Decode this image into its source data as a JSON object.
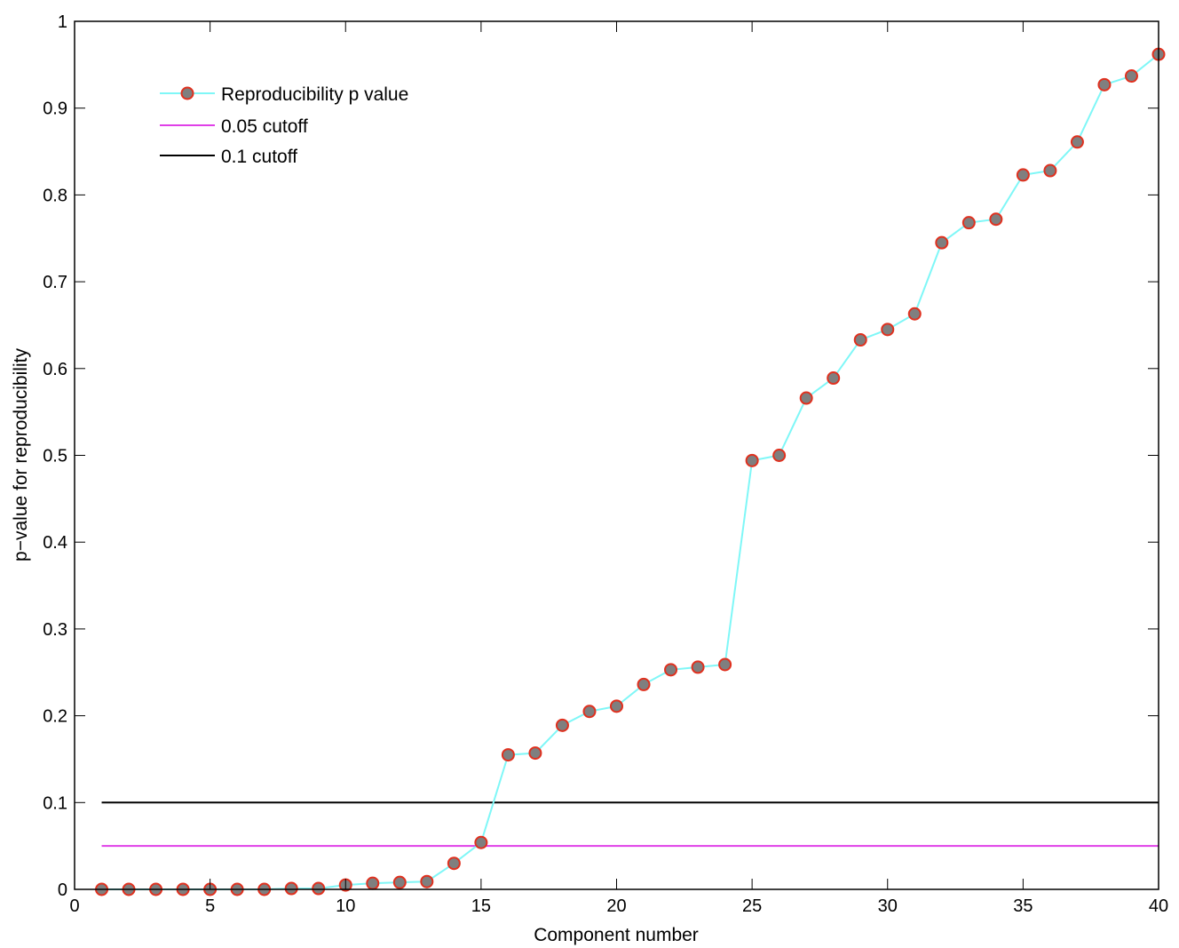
{
  "chart_data": {
    "type": "line",
    "title": "",
    "xlabel": "Component number",
    "ylabel": "p−value for reproducibility",
    "xlim": [
      0,
      40
    ],
    "ylim": [
      0,
      1
    ],
    "xticks": [
      0,
      5,
      10,
      15,
      20,
      25,
      30,
      35,
      40
    ],
    "xtick_labels": [
      "0",
      "5",
      "10",
      "15",
      "20",
      "25",
      "30",
      "35",
      "40"
    ],
    "yticks": [
      0,
      0.1,
      0.2,
      0.3,
      0.4,
      0.5,
      0.6,
      0.7,
      0.8,
      0.9,
      1
    ],
    "ytick_labels": [
      "0",
      "0.1",
      "0.2",
      "0.3",
      "0.4",
      "0.5",
      "0.6",
      "0.7",
      "0.8",
      "0.9",
      "1"
    ],
    "grid": false,
    "legend_position": "upper left",
    "x": [
      1,
      2,
      3,
      4,
      5,
      6,
      7,
      8,
      9,
      10,
      11,
      12,
      13,
      14,
      15,
      16,
      17,
      18,
      19,
      20,
      21,
      22,
      23,
      24,
      25,
      26,
      27,
      28,
      29,
      30,
      31,
      32,
      33,
      34,
      35,
      36,
      37,
      38,
      39,
      40
    ],
    "series": [
      {
        "name": "Reproducibility p value",
        "style": "line+marker",
        "line_color": "#7ff7f7",
        "marker_fill": "#7f7f7f",
        "marker_edge": "#e0301e",
        "values": [
          0.0,
          0.0,
          0.0,
          0.0,
          0.0,
          0.0,
          0.0,
          0.001,
          0.001,
          0.005,
          0.007,
          0.008,
          0.009,
          0.03,
          0.054,
          0.155,
          0.157,
          0.189,
          0.205,
          0.211,
          0.236,
          0.253,
          0.256,
          0.259,
          0.494,
          0.5,
          0.566,
          0.589,
          0.633,
          0.645,
          0.663,
          0.745,
          0.768,
          0.772,
          0.823,
          0.828,
          0.861,
          0.927,
          0.937,
          0.962
        ]
      },
      {
        "name": "0.05 cutoff",
        "style": "line",
        "line_color": "#e040e8",
        "x_range": [
          1,
          40
        ],
        "value": 0.05
      },
      {
        "name": "0.1 cutoff",
        "style": "line",
        "line_color": "#000000",
        "x_range": [
          1,
          40
        ],
        "value": 0.1
      }
    ]
  },
  "legend": {
    "items": [
      {
        "label": "Reproducibility p value"
      },
      {
        "label": "0.05 cutoff"
      },
      {
        "label": "0.1 cutoff"
      }
    ]
  }
}
